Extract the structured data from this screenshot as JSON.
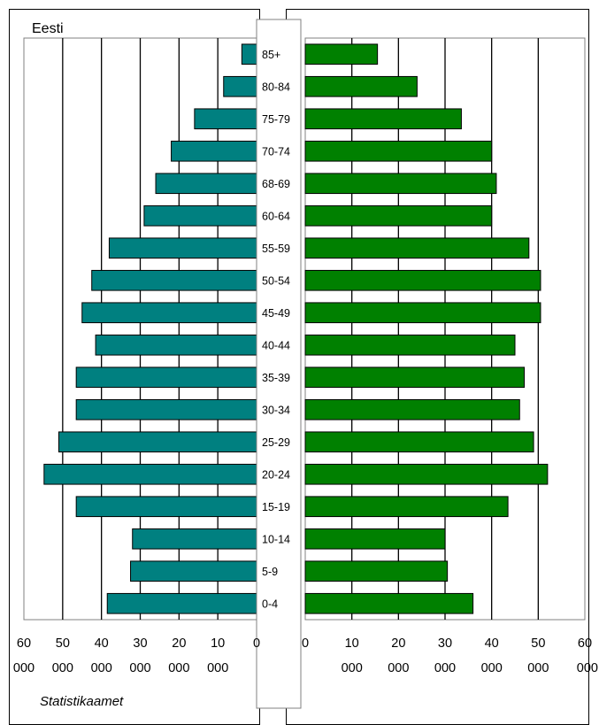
{
  "chart_data": {
    "type": "bar",
    "subtype": "population-pyramid",
    "title": "Eesti",
    "source": "Statistikaamet",
    "categories": [
      "0-4",
      "5-9",
      "10-14",
      "15-19",
      "20-24",
      "25-29",
      "30-34",
      "35-39",
      "40-44",
      "45-49",
      "50-54",
      "55-59",
      "60-64",
      "68-69",
      "70-74",
      "75-79",
      "80-84",
      "85+"
    ],
    "series": [
      {
        "values": [
          38500,
          32500,
          32000,
          46500,
          54800,
          51000,
          46500,
          46500,
          41500,
          45000,
          42500,
          38000,
          29000,
          26000,
          22000,
          16000,
          8500,
          3800
        ],
        "color": "#008080",
        "side": "left"
      },
      {
        "values": [
          36000,
          30500,
          30000,
          43500,
          52000,
          49000,
          46000,
          47000,
          45000,
          50500,
          50500,
          48000,
          40000,
          41000,
          40000,
          33500,
          24000,
          15500
        ],
        "color": "#008000",
        "side": "right"
      }
    ],
    "left_axis": {
      "range": [
        60000,
        0
      ],
      "ticks": [
        {
          "top": "60",
          "bottom": "000"
        },
        {
          "top": "50",
          "bottom": "000"
        },
        {
          "top": "40",
          "bottom": "000"
        },
        {
          "top": "30",
          "bottom": "000"
        },
        {
          "top": "20",
          "bottom": "000"
        },
        {
          "top": "10",
          "bottom": "000"
        },
        {
          "top": "0",
          "bottom": ""
        }
      ]
    },
    "right_axis": {
      "range": [
        0,
        60000
      ],
      "ticks": [
        {
          "top": "0",
          "bottom": ""
        },
        {
          "top": "10",
          "bottom": "000"
        },
        {
          "top": "20",
          "bottom": "000"
        },
        {
          "top": "30",
          "bottom": "000"
        },
        {
          "top": "40",
          "bottom": "000"
        },
        {
          "top": "50",
          "bottom": "000"
        },
        {
          "top": "60",
          "bottom": "000"
        }
      ]
    },
    "grid": true
  }
}
